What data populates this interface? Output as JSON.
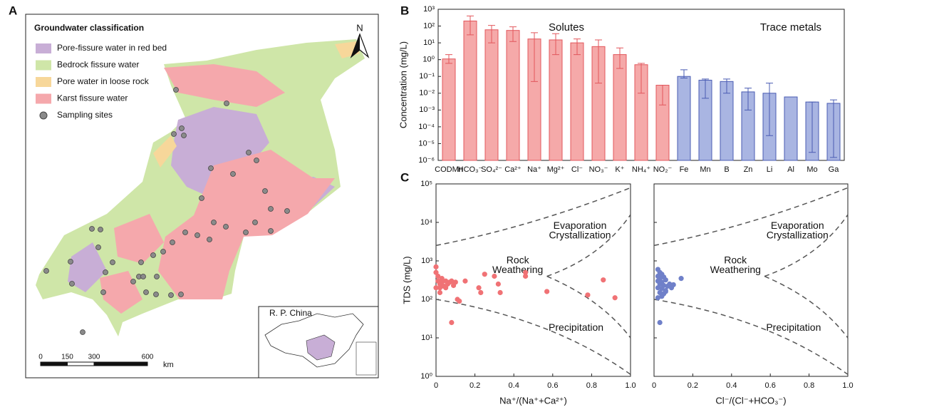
{
  "map": {
    "panel_label": "A",
    "legend_title": "Groundwater classification",
    "legend": [
      {
        "label": "Pore-fissure water in red bed",
        "color": "#c8aed6"
      },
      {
        "label": "Bedrock fissure water",
        "color": "#cfe6a8"
      },
      {
        "label": "Pore water in loose rock",
        "color": "#f7d79a"
      },
      {
        "label": "Karst fissure water",
        "color": "#f5a8ac"
      }
    ],
    "sampling_sites": "Sampling sites",
    "north": "N",
    "scale": [
      0,
      150,
      300,
      600
    ],
    "scale_unit": "km",
    "inset_label": "R. P. China"
  },
  "chart_data": [
    {
      "type": "bar",
      "panel_label": "B",
      "log_y": true,
      "ylabel": "Concentration (mg/L)",
      "categories": [
        "CODMn",
        "HCO₃⁻",
        "SO₄²⁻",
        "Ca²⁺",
        "Na⁺",
        "Mg²⁺",
        "Cl⁻",
        "NO₃⁻",
        "K⁺",
        "NH₄⁺",
        "NO₂⁻",
        "Fe",
        "Mn",
        "B",
        "Zn",
        "Li",
        "Al",
        "Mo",
        "Ga"
      ],
      "series": [
        {
          "name": "Solutes",
          "color": "#f5a9a9",
          "edge": "#e2575c",
          "values": [
            1.1,
            200,
            60,
            55,
            17,
            15,
            10,
            6,
            2,
            0.5,
            0.03,
            null,
            null,
            null,
            null,
            null,
            null,
            null,
            null
          ],
          "upper": [
            2,
            400,
            110,
            90,
            40,
            35,
            17,
            15,
            5,
            0.6,
            0.03,
            null,
            null,
            null,
            null,
            null,
            null,
            null,
            null
          ],
          "lower": [
            0.6,
            30,
            10,
            12,
            0.05,
            2,
            2,
            0.04,
            0.3,
            0.01,
            0.002,
            null,
            null,
            null,
            null,
            null,
            null,
            null,
            null
          ]
        },
        {
          "name": "Trace metals",
          "color": "#a9b5e2",
          "edge": "#4a5cb3",
          "values": [
            null,
            null,
            null,
            null,
            null,
            null,
            null,
            null,
            null,
            null,
            null,
            0.1,
            0.06,
            0.05,
            0.012,
            0.01,
            0.006,
            0.003,
            0.0025
          ],
          "upper": [
            null,
            null,
            null,
            null,
            null,
            null,
            null,
            null,
            null,
            null,
            null,
            0.25,
            0.07,
            0.07,
            0.02,
            0.04,
            0.006,
            0.003,
            0.004
          ],
          "lower": [
            null,
            null,
            null,
            null,
            null,
            null,
            null,
            null,
            null,
            null,
            null,
            0.08,
            0.005,
            0.01,
            0.001,
            3e-05,
            0.006,
            3e-06,
            1.5e-06
          ]
        }
      ],
      "ylim": [
        1e-06,
        1000
      ],
      "yticks": [
        {
          "value": 1e-06,
          "label": "10⁻⁶"
        },
        {
          "value": 1e-05,
          "label": "10⁻⁵"
        },
        {
          "value": 0.0001,
          "label": "10⁻⁴"
        },
        {
          "value": 0.001,
          "label": "10⁻³"
        },
        {
          "value": 0.01,
          "label": "10⁻²"
        },
        {
          "value": 0.1,
          "label": "10⁻¹"
        },
        {
          "value": 1,
          "label": "10⁰"
        },
        {
          "value": 10,
          "label": "10¹"
        },
        {
          "value": 100,
          "label": "10²"
        },
        {
          "value": 1000,
          "label": "10³"
        }
      ]
    },
    {
      "type": "scatter",
      "panel_label": "C",
      "log_y": true,
      "xlabel": "Na⁺/(Na⁺+Ca²⁺)",
      "ylabel": "TDS (mg/L)",
      "annotations": [
        "Evaporation",
        "Crystallization",
        "Rock",
        "Weathering",
        "Precipitation"
      ],
      "color": "#f07275",
      "x": [
        0,
        0,
        0.01,
        0.01,
        0.02,
        0.02,
        0.03,
        0.03,
        0.04,
        0.05,
        0.06,
        0.07,
        0.08,
        0.09,
        0.1,
        0.11,
        0.12,
        0.08,
        0.15,
        0.22,
        0.23,
        0.25,
        0.3,
        0.32,
        0.33,
        0.46,
        0.46,
        0.57,
        0.78,
        0.86,
        0.92,
        0,
        0.02,
        0.05
      ],
      "y": [
        700,
        500,
        400,
        300,
        250,
        200,
        350,
        280,
        220,
        300,
        250,
        280,
        300,
        230,
        280,
        100,
        90,
        25,
        300,
        200,
        150,
        450,
        400,
        250,
        150,
        500,
        400,
        160,
        130,
        320,
        110,
        200,
        150,
        200
      ],
      "xlim": [
        0,
        1
      ],
      "xticks": [
        0,
        0.2,
        0.4,
        0.6,
        0.8,
        {
          "value": 1,
          "label": "1.0"
        }
      ],
      "ylim": [
        1,
        100000
      ],
      "yticks": [
        {
          "value": 1,
          "label": "10⁰"
        },
        {
          "value": 10,
          "label": "10¹"
        },
        {
          "value": 100,
          "label": "10²"
        },
        {
          "value": 1000,
          "label": "10³"
        },
        {
          "value": 10000,
          "label": "10⁴"
        },
        {
          "value": 100000,
          "label": "10⁵"
        }
      ]
    },
    {
      "type": "scatter",
      "log_y": true,
      "xlabel": "Cl⁻/(Cl⁻+HCO₃⁻)",
      "annotations": [
        "Evaporation",
        "Crystallization",
        "Rock",
        "Weathering",
        "Precipitation"
      ],
      "color": "#6f80c9",
      "x": [
        0.02,
        0.03,
        0.04,
        0.02,
        0.03,
        0.05,
        0.06,
        0.02,
        0.04,
        0.03,
        0.05,
        0.07,
        0.08,
        0.1,
        0.14,
        0.02,
        0.04,
        0.06,
        0.03,
        0.05,
        0.04,
        0.02,
        0.09,
        0.03,
        0.06
      ],
      "y": [
        600,
        500,
        450,
        400,
        350,
        380,
        320,
        300,
        280,
        250,
        230,
        220,
        250,
        240,
        350,
        200,
        190,
        170,
        150,
        140,
        120,
        110,
        200,
        25,
        160
      ],
      "xlim": [
        0,
        1
      ],
      "xticks": [
        0,
        0.2,
        0.4,
        0.6,
        0.8,
        {
          "value": 1,
          "label": "1.0"
        }
      ],
      "ylim": [
        1,
        100000
      ],
      "yticks": [
        1,
        10,
        100,
        1000,
        10000,
        100000
      ]
    }
  ]
}
